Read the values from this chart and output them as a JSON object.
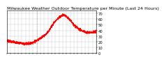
{
  "title": "Milwaukee Weather Outdoor Temperature per Minute (Last 24 Hours)",
  "line_color": "#ff0000",
  "background_color": "#ffffff",
  "plot_bg_color": "#ffffff",
  "grid_color": "#bbbbbb",
  "vline_color": "#999999",
  "vline_x": 480,
  "ylim": [
    0,
    75
  ],
  "xlim": [
    0,
    1440
  ],
  "yticks": [
    0,
    10,
    20,
    30,
    40,
    50,
    60,
    70
  ],
  "temperature_curve": [
    [
      0,
      22
    ],
    [
      30,
      21
    ],
    [
      60,
      20
    ],
    [
      90,
      19.5
    ],
    [
      120,
      19
    ],
    [
      180,
      18
    ],
    [
      240,
      17
    ],
    [
      300,
      16
    ],
    [
      360,
      17
    ],
    [
      400,
      18
    ],
    [
      440,
      20
    ],
    [
      480,
      22
    ],
    [
      510,
      24
    ],
    [
      540,
      26
    ],
    [
      570,
      28
    ],
    [
      600,
      30
    ],
    [
      630,
      33
    ],
    [
      660,
      37
    ],
    [
      690,
      42
    ],
    [
      720,
      47
    ],
    [
      750,
      52
    ],
    [
      780,
      56
    ],
    [
      810,
      60
    ],
    [
      840,
      63
    ],
    [
      870,
      65
    ],
    [
      900,
      67
    ],
    [
      930,
      66
    ],
    [
      960,
      64
    ],
    [
      990,
      61
    ],
    [
      1020,
      58
    ],
    [
      1050,
      54
    ],
    [
      1080,
      50
    ],
    [
      1110,
      47
    ],
    [
      1140,
      44
    ],
    [
      1170,
      42
    ],
    [
      1200,
      40
    ],
    [
      1230,
      38
    ],
    [
      1260,
      37
    ],
    [
      1290,
      36
    ],
    [
      1320,
      36
    ],
    [
      1350,
      36
    ],
    [
      1380,
      37
    ],
    [
      1410,
      37
    ],
    [
      1440,
      37
    ]
  ],
  "title_fontsize": 4.5,
  "tick_fontsize": 3.8,
  "linewidth": 0.7,
  "xtick_count": 25,
  "noise_std": 1.2
}
